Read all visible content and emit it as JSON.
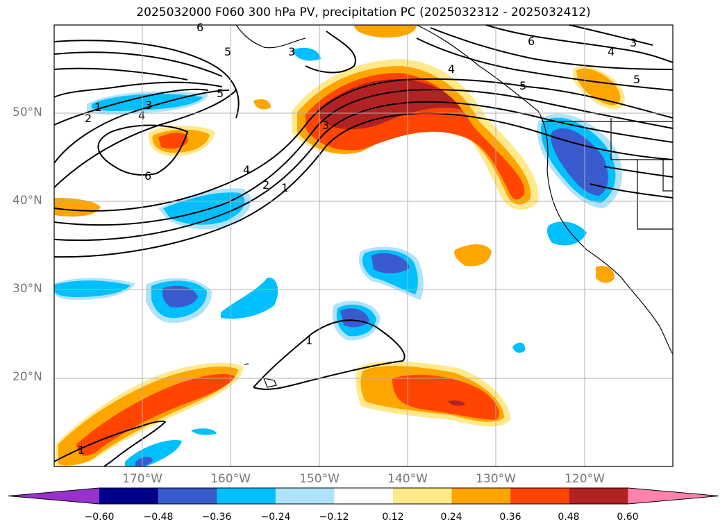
{
  "title": "2025032000 F060 300 hPa PV, precipitation PC (2025032312 - 2025032412)",
  "axes": {
    "lat_labels": [
      "50°N",
      "40°N",
      "30°N",
      "20°N"
    ],
    "lon_labels": [
      "170°W",
      "160°W",
      "150°W",
      "140°W",
      "130°W",
      "120°W"
    ],
    "lon_range": [
      -180,
      -110
    ],
    "lat_range": [
      10,
      60
    ],
    "grid": true
  },
  "pv_contours": {
    "color": "#000000",
    "labels": [
      "1",
      "2",
      "3",
      "4",
      "5",
      "6"
    ]
  },
  "colorbar": {
    "ticks": [
      "−0.60",
      "−0.48",
      "−0.36",
      "−0.24",
      "−0.12",
      "0.12",
      "0.24",
      "0.36",
      "0.48",
      "0.60"
    ],
    "colors": [
      "#9932cc",
      "#00008b",
      "#3a5bcd",
      "#00bfff",
      "#afe3fb",
      "#ffffff",
      "#ffe98a",
      "#ffa500",
      "#ff4500",
      "#b22222",
      "#ff82ab"
    ]
  }
}
